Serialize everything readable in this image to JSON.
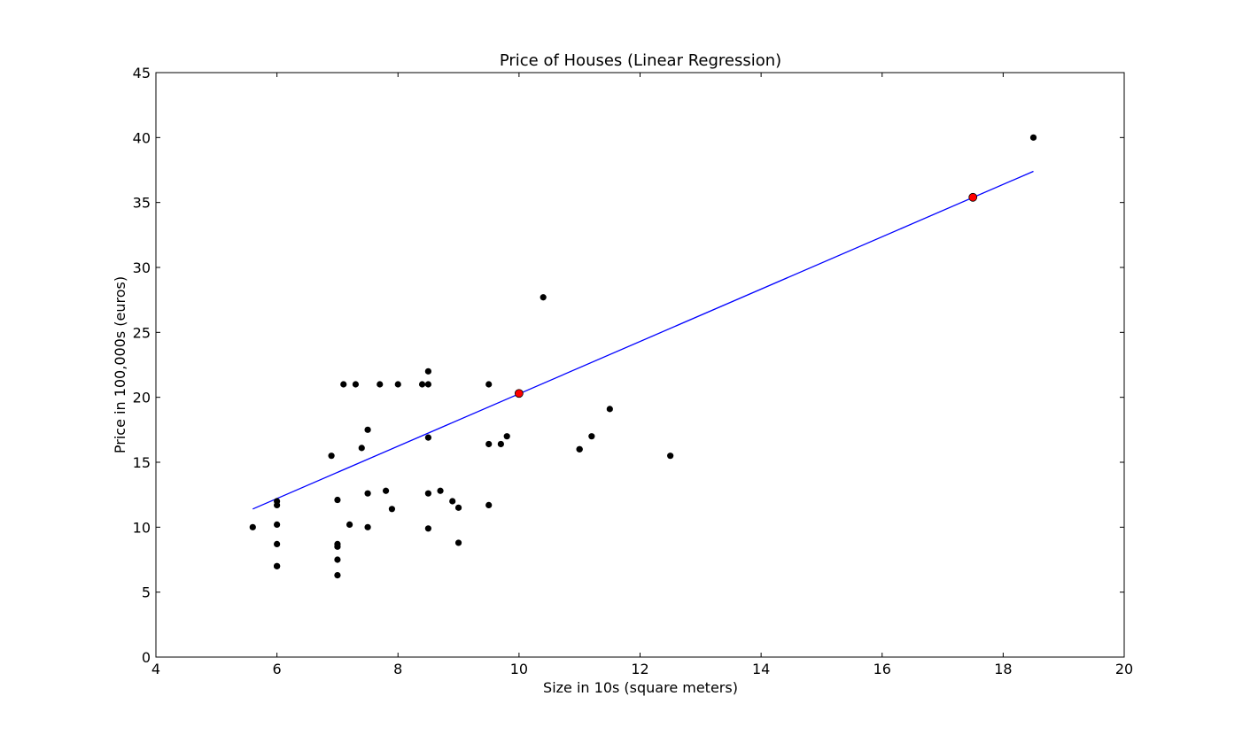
{
  "chart_data": {
    "type": "scatter",
    "title": "Price of Houses (Linear Regression)",
    "xlabel": "Size in 10s (square meters)",
    "ylabel": "Price in 100,000s (euros)",
    "xlim": [
      4,
      20
    ],
    "ylim": [
      0,
      45
    ],
    "xticks": [
      4,
      6,
      8,
      10,
      12,
      14,
      16,
      18,
      20
    ],
    "yticks": [
      0,
      5,
      10,
      15,
      20,
      25,
      30,
      35,
      40,
      45
    ],
    "grid": false,
    "series": [
      {
        "name": "houses",
        "kind": "scatter",
        "color": "#000000",
        "x": [
          5.6,
          6.0,
          6.0,
          6.0,
          6.0,
          6.0,
          6.0,
          6.9,
          7.0,
          7.0,
          7.0,
          7.0,
          7.0,
          7.1,
          7.2,
          7.3,
          7.4,
          7.5,
          7.5,
          7.5,
          7.7,
          7.8,
          7.9,
          8.0,
          8.4,
          8.5,
          8.5,
          8.5,
          8.5,
          8.5,
          8.7,
          8.9,
          9.0,
          9.0,
          9.5,
          9.5,
          9.5,
          9.7,
          9.8,
          10.4,
          11.0,
          11.0,
          11.2,
          11.5,
          12.5,
          18.5
        ],
        "y": [
          10.0,
          12.0,
          11.7,
          10.2,
          8.7,
          7.0,
          7.0,
          15.5,
          12.1,
          8.7,
          8.5,
          7.5,
          6.3,
          21.0,
          10.2,
          21.0,
          16.1,
          17.5,
          12.6,
          10.0,
          21.0,
          12.8,
          11.4,
          21.0,
          21.0,
          22.0,
          21.0,
          16.9,
          12.6,
          9.9,
          12.8,
          12.0,
          11.5,
          8.8,
          21.0,
          16.4,
          11.7,
          16.4,
          17.0,
          27.7,
          16.0,
          16.0,
          17.0,
          19.1,
          15.5,
          40.0
        ]
      },
      {
        "name": "regression-line",
        "kind": "line",
        "color": "#0000ff",
        "x": [
          5.6,
          18.5
        ],
        "y": [
          11.4,
          37.4
        ]
      },
      {
        "name": "predictions",
        "kind": "scatter",
        "color": "#ff0000",
        "x": [
          10.0,
          17.5
        ],
        "y": [
          20.3,
          35.4
        ]
      }
    ]
  }
}
